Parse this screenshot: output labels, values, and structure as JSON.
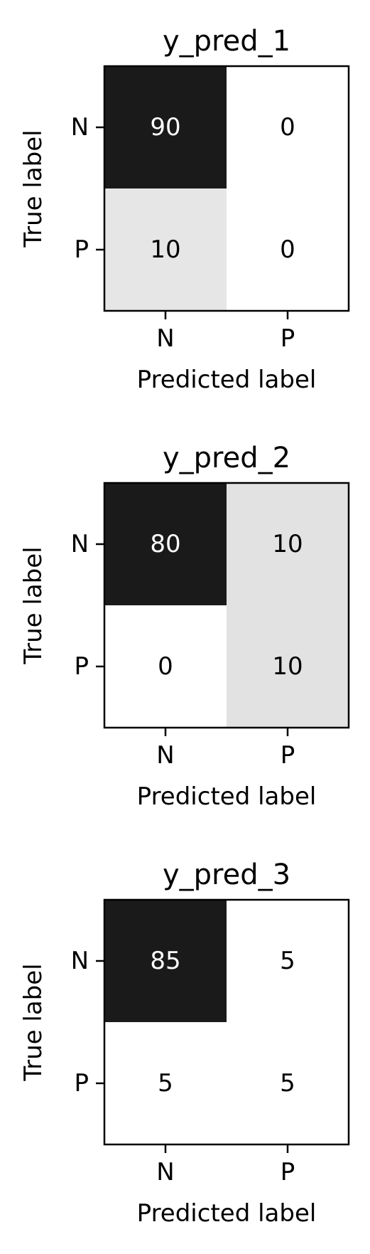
{
  "chart_data": [
    {
      "type": "heatmap",
      "title": "y_pred_1",
      "xlabel": "Predicted label",
      "ylabel": "True label",
      "x_categories": [
        "N",
        "P"
      ],
      "y_categories": [
        "N",
        "P"
      ],
      "matrix": [
        [
          90,
          0
        ],
        [
          10,
          0
        ]
      ],
      "colormap": "Greys"
    },
    {
      "type": "heatmap",
      "title": "y_pred_2",
      "xlabel": "Predicted label",
      "ylabel": "True label",
      "x_categories": [
        "N",
        "P"
      ],
      "y_categories": [
        "N",
        "P"
      ],
      "matrix": [
        [
          80,
          10
        ],
        [
          0,
          10
        ]
      ],
      "colormap": "Greys"
    },
    {
      "type": "heatmap",
      "title": "y_pred_3",
      "xlabel": "Predicted label",
      "ylabel": "True label",
      "x_categories": [
        "N",
        "P"
      ],
      "y_categories": [
        "N",
        "P"
      ],
      "matrix": [
        [
          85,
          5
        ],
        [
          5,
          5
        ]
      ],
      "colormap": "Greys"
    }
  ]
}
